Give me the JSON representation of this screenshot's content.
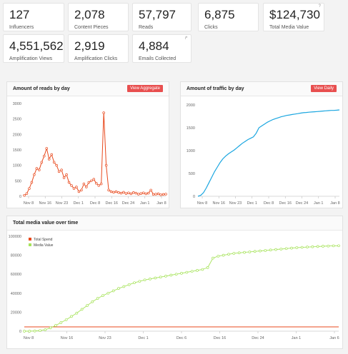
{
  "stats": [
    {
      "value": "127",
      "label": "Influencers"
    },
    {
      "value": "2,078",
      "label": "Content Pieces"
    },
    {
      "value": "57,797",
      "label": "Reads"
    },
    {
      "value": "6,875",
      "label": "Clicks"
    },
    {
      "value": "$124,730",
      "label": "Total Media Value",
      "corner": "?"
    },
    {
      "value": "4,551,562",
      "label": "Amplification Views"
    },
    {
      "value": "2,919",
      "label": "Amplification Clicks"
    },
    {
      "value": "4,884",
      "label": "Emails Collected",
      "corner": "↱"
    }
  ],
  "colors": {
    "reads": "#e8491d",
    "traffic": "#1aa6e0",
    "media": "#a6e35a",
    "spend": "#e8491d",
    "button": "#e84f4f"
  },
  "chart_data": [
    {
      "type": "line",
      "title": "Amount of reads by day",
      "button": "View Aggregate",
      "x_ticks": [
        "Nov 8",
        "Nov 16",
        "Nov 23",
        "Dec 1",
        "Dec 8",
        "Dec 16",
        "Dec 24",
        "Jan 1",
        "Jan 8"
      ],
      "y_ticks": [
        "0",
        "500",
        "1000",
        "1500",
        "2000",
        "2500",
        "3000"
      ],
      "ylim": [
        0,
        3000
      ],
      "series": [
        {
          "values": [
            30,
            90,
            250,
            450,
            700,
            900,
            850,
            1100,
            1300,
            1550,
            1200,
            1350,
            1100,
            1000,
            800,
            850,
            600,
            700,
            450,
            350,
            250,
            300,
            150,
            200,
            400,
            300,
            450,
            500,
            550,
            420,
            350,
            400,
            2700,
            1000,
            200,
            150,
            130,
            150,
            120,
            100,
            130,
            90,
            110,
            80,
            120,
            100,
            70,
            90,
            110,
            80,
            100,
            200,
            60,
            70,
            80,
            50,
            60,
            70
          ]
        }
      ]
    },
    {
      "type": "line",
      "title": "Amount of traffic by day",
      "button": "View Daily",
      "x_ticks": [
        "Nov 8",
        "Nov 16",
        "Nov 23",
        "Dec 1",
        "Dec 8",
        "Dec 16",
        "Dec 24",
        "Jan 1",
        "Jan 8"
      ],
      "y_ticks": [
        "0",
        "500",
        "1000",
        "1500",
        "2000"
      ],
      "ylim": [
        0,
        2000
      ],
      "series": [
        {
          "values": [
            0,
            20,
            80,
            180,
            300,
            420,
            540,
            640,
            740,
            820,
            880,
            930,
            970,
            1010,
            1060,
            1110,
            1160,
            1200,
            1240,
            1270,
            1300,
            1380,
            1500,
            1540,
            1580,
            1620,
            1650,
            1680,
            1700,
            1720,
            1740,
            1755,
            1770,
            1780,
            1790,
            1800,
            1810,
            1820,
            1830,
            1835,
            1840,
            1845,
            1850,
            1855,
            1860,
            1865,
            1870,
            1875,
            1880,
            1880,
            1885,
            1890
          ]
        }
      ]
    },
    {
      "type": "line",
      "title": "Total media value over time",
      "x_ticks": [
        "Nov 8",
        "Nov 16",
        "Nov 23",
        "Dec 1",
        "Dec 6",
        "Dec 16",
        "Dec 24",
        "Jan 1",
        "Jan 6"
      ],
      "y_ticks": [
        "0",
        "20000",
        "40000",
        "60000",
        "80000",
        "100000"
      ],
      "ylim": [
        0,
        100000
      ],
      "legend": [
        "Total Spend",
        "Media Value"
      ],
      "series": [
        {
          "name": "Total Spend",
          "values": [
            4500,
            4500,
            4500,
            4500,
            4500,
            4500,
            4500,
            4500,
            4500,
            4500,
            4500,
            4500,
            4500,
            4500,
            4500,
            4500,
            4500,
            4500,
            4500,
            4500,
            4500,
            4500,
            4500,
            4500,
            4500,
            4500,
            4500,
            4500,
            4500,
            4500,
            4500,
            4500,
            4500,
            4500,
            4500,
            4500,
            4500,
            4500,
            4500,
            4500,
            4500,
            4500,
            4500,
            4500,
            4500,
            4500,
            4500,
            4500,
            4500,
            4500,
            4500,
            4500,
            4500,
            4500,
            4500,
            4500,
            4500,
            4500,
            4500,
            4500,
            4500
          ]
        },
        {
          "name": "Media Value",
          "values": [
            0,
            0,
            200,
            600,
            1500,
            3500,
            6000,
            9000,
            12000,
            15500,
            19000,
            23000,
            27000,
            31000,
            34500,
            37500,
            40000,
            42500,
            45000,
            47000,
            49000,
            51000,
            52500,
            54000,
            55000,
            56000,
            57000,
            58000,
            59000,
            60000,
            61000,
            62000,
            63000,
            64000,
            65000,
            67000,
            77000,
            79000,
            80000,
            81000,
            82000,
            82500,
            83000,
            83500,
            84000,
            84500,
            85000,
            85500,
            86000,
            86500,
            87000,
            87500,
            88000,
            88300,
            88600,
            88900,
            89200,
            89500,
            89700,
            89900,
            90000
          ]
        }
      ]
    }
  ]
}
